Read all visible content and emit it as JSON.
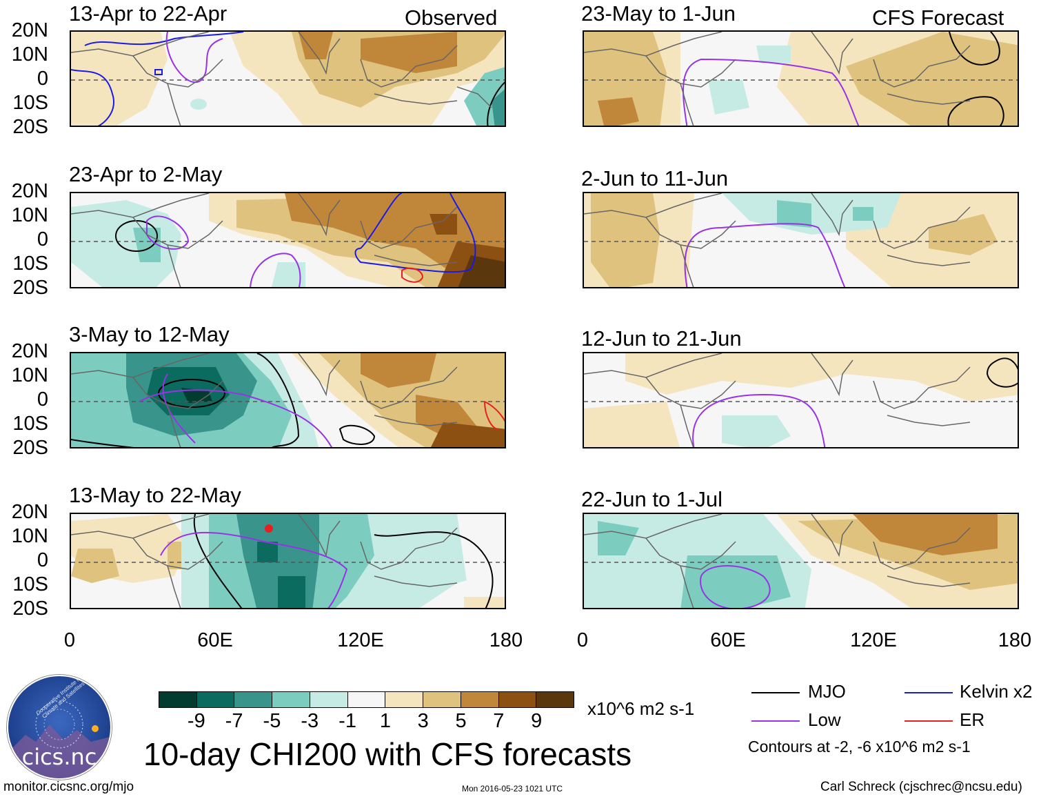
{
  "headers": {
    "observed": "Observed",
    "forecast": "CFS Forecast"
  },
  "panels_left": [
    {
      "title": "13-Apr to 22-Apr"
    },
    {
      "title": "23-Apr to 2-May"
    },
    {
      "title": "3-May to 12-May"
    },
    {
      "title": "13-May to 22-May"
    }
  ],
  "panels_right": [
    {
      "title": "23-May to 1-Jun"
    },
    {
      "title": "2-Jun to 11-Jun"
    },
    {
      "title": "12-Jun to 21-Jun"
    },
    {
      "title": "22-Jun to 1-Jul"
    }
  ],
  "lat_labels": [
    "20N",
    "10N",
    "0",
    "10S",
    "20S"
  ],
  "lon_labels": [
    "0",
    "60E",
    "120E",
    "180"
  ],
  "colorbar": {
    "colors": [
      "#023c30",
      "#0b6b5e",
      "#39958b",
      "#7ccdbf",
      "#c6ebe4",
      "#f6f6f6",
      "#f5e5bf",
      "#dfc27d",
      "#c0863a",
      "#8c5013",
      "#5b370d"
    ],
    "labels": [
      "-9",
      "-7",
      "-5",
      "-3",
      "-1",
      "1",
      "3",
      "5",
      "7",
      "9"
    ],
    "units": "x10^6 m2 s-1"
  },
  "legend": {
    "items": [
      {
        "label": "MJO",
        "color": "#000000"
      },
      {
        "label": "Kelvin x2",
        "color": "#1a1ae6"
      },
      {
        "label": "Low",
        "color": "#9932e6"
      },
      {
        "label": "ER",
        "color": "#e62020"
      }
    ],
    "note": "Contours at -2, -6 x10^6 m2 s-1"
  },
  "logo_text": "cics.nc",
  "logo_ring_text": "Cooperative Institute for Climate and Satellites",
  "main_title": "10-day CHI200 with CFS forecasts",
  "footer": {
    "url": "monitor.cicsnc.org/mjo",
    "timestamp": "Mon 2016-05-23 1021 UTC",
    "author": "Carl Schreck (cjschrec@ncsu.edu)"
  },
  "chart_data": {
    "type": "heatmap",
    "variable": "CHI200 anomaly (10-day mean)",
    "units": "x10^6 m2 s-1",
    "lat_range": [
      -20,
      20
    ],
    "lon_range": [
      0,
      180
    ],
    "contour_levels": [
      -2,
      -6
    ],
    "observed_periods": [
      "13-Apr to 22-Apr",
      "23-Apr to 2-May",
      "3-May to 12-May",
      "13-May to 22-May"
    ],
    "forecast_periods": [
      "23-May to 1-Jun",
      "2-Jun to 11-Jun",
      "12-Jun to 21-Jun",
      "22-Jun to 1-Jul"
    ]
  }
}
